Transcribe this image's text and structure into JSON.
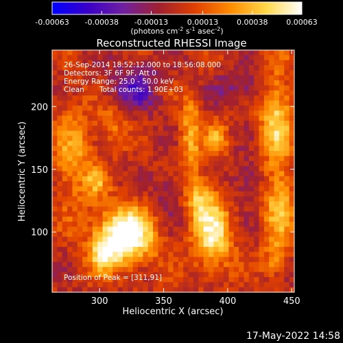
{
  "chart_data": {
    "type": "heatmap",
    "title": "Reconstructed RHESSI Image",
    "xlabel": "Heliocentric X (arcsec)",
    "ylabel": "Heliocentric Y (arcsec)",
    "xlim": [
      263,
      452
    ],
    "ylim": [
      52,
      245
    ],
    "x_ticks": [
      300,
      350,
      400,
      450
    ],
    "y_ticks": [
      100,
      150,
      200
    ],
    "colorbar": {
      "min": -0.00063,
      "max": 0.00063,
      "tick_values": [
        -0.00063,
        -0.00038,
        -0.00013,
        0.00013,
        0.00038,
        0.00063
      ],
      "tick_labels": [
        "-0.00063",
        "-0.00038",
        "-0.00013",
        "0.00013",
        "0.00038",
        "0.00063"
      ],
      "unit_text": "(photons cm",
      "unit_sup1": "-2",
      "unit_mid": " s",
      "unit_sup2": "-1",
      "unit_end": " asec",
      "unit_sup3": "-2",
      "unit_close": ")",
      "colors": [
        "#0000ff",
        "#3a00c8",
        "#7020a0",
        "#a02030",
        "#e04000",
        "#ff8c00",
        "#ffd84a",
        "#ffffff"
      ]
    },
    "info": {
      "time_range": "26-Sep-2014 18:52:12.000 to 18:56:08.000",
      "detectors": "Detectors: 3F 6F 9F, Att 0",
      "energy": "Energy Range: 25.0 - 50.0 keV",
      "clean": "Clean",
      "total_counts": "Total counts: 1.90E+03"
    },
    "peak_label": "Position of Peak = [311,91]",
    "peak": [
      311,
      91
    ],
    "sources": [
      {
        "x": 320,
        "y": 97,
        "sx": 16,
        "sy": 16,
        "amp": 0.00075
      },
      {
        "x": 302,
        "y": 82,
        "sx": 8,
        "sy": 10,
        "amp": 0.00035
      },
      {
        "x": 388,
        "y": 98,
        "sx": 11,
        "sy": 20,
        "amp": 0.00052
      },
      {
        "x": 378,
        "y": 128,
        "sx": 9,
        "sy": 12,
        "amp": 0.00036
      },
      {
        "x": 371,
        "y": 178,
        "sx": 6,
        "sy": 22,
        "amp": 0.00036
      },
      {
        "x": 392,
        "y": 175,
        "sx": 6,
        "sy": 10,
        "amp": 0.0003
      },
      {
        "x": 280,
        "y": 160,
        "sx": 12,
        "sy": 30,
        "amp": 0.0003
      },
      {
        "x": 310,
        "y": 185,
        "sx": 7,
        "sy": 14,
        "amp": 0.00022
      },
      {
        "x": 298,
        "y": 140,
        "sx": 6,
        "sy": 7,
        "amp": 0.00024
      },
      {
        "x": 438,
        "y": 190,
        "sx": 9,
        "sy": 28,
        "amp": 0.00045
      },
      {
        "x": 440,
        "y": 120,
        "sx": 8,
        "sy": 20,
        "amp": 0.0004
      },
      {
        "x": 437,
        "y": 78,
        "sx": 7,
        "sy": 10,
        "amp": 0.00026
      },
      {
        "x": 350,
        "y": 215,
        "sx": 8,
        "sy": 6,
        "amp": 0.00018
      }
    ],
    "negative_regions": [
      {
        "x": 330,
        "y": 215,
        "sx": 18,
        "sy": 12,
        "amp": -0.00032
      },
      {
        "x": 410,
        "y": 215,
        "sx": 14,
        "sy": 10,
        "amp": -0.00022
      },
      {
        "x": 355,
        "y": 130,
        "sx": 10,
        "sy": 14,
        "amp": -0.00018
      },
      {
        "x": 415,
        "y": 140,
        "sx": 9,
        "sy": 12,
        "amp": -0.0002
      }
    ]
  },
  "footer": {
    "timestamp": "17-May-2022 14:58"
  }
}
